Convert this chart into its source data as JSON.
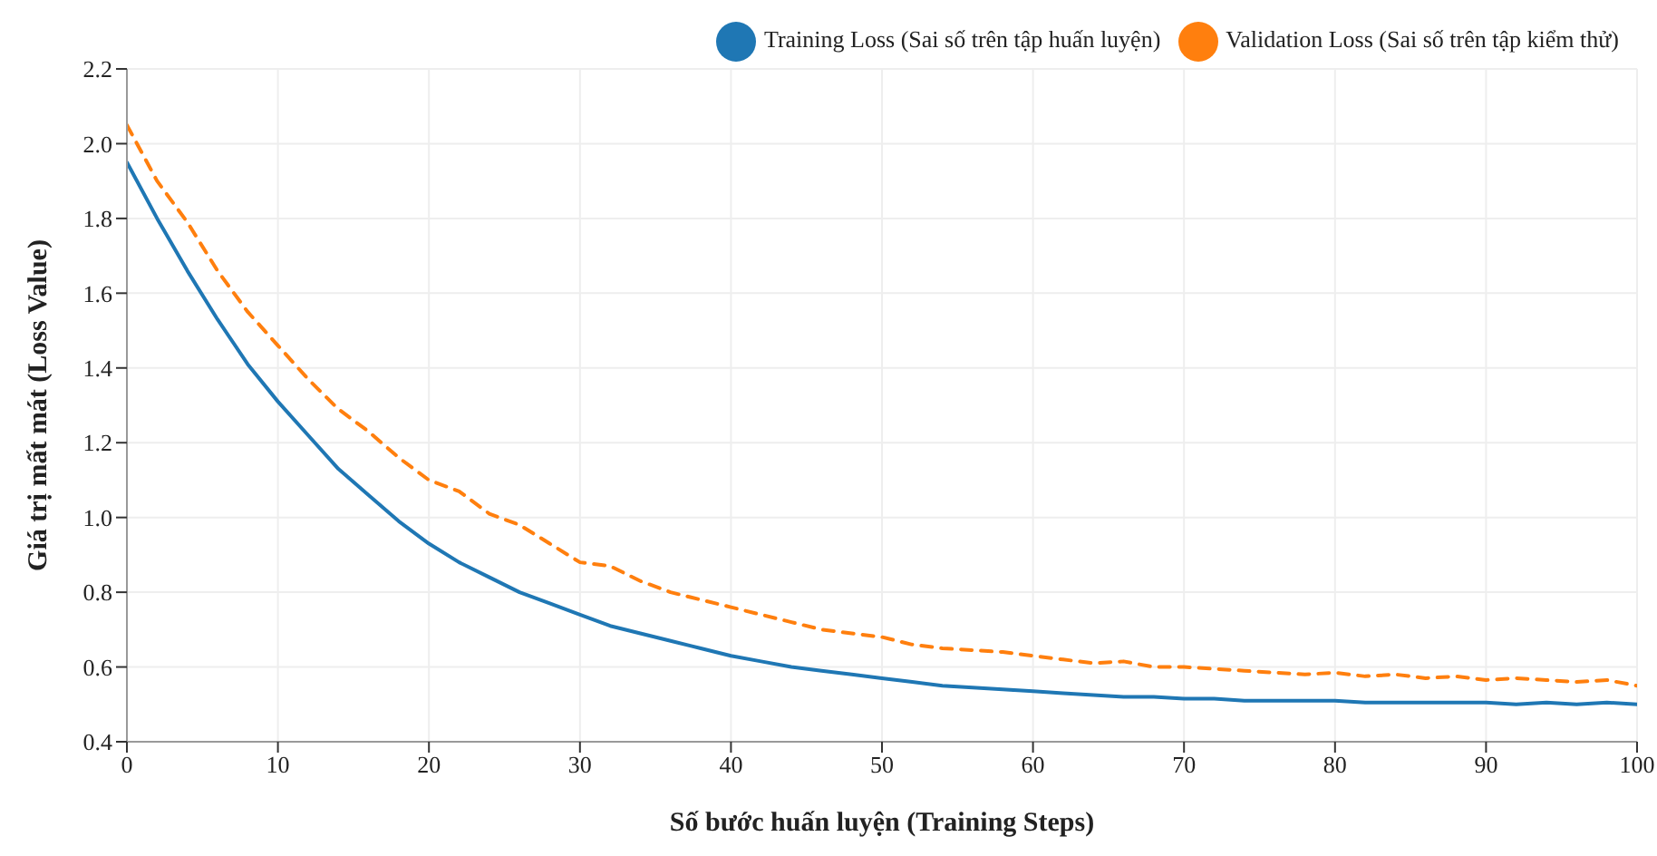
{
  "chart_data": {
    "type": "line",
    "xlabel": "Số bước huấn luyện (Training Steps)",
    "ylabel": "Giá trị mất mát (Loss Value)",
    "x": [
      0,
      2,
      4,
      6,
      8,
      10,
      12,
      14,
      16,
      18,
      20,
      22,
      24,
      26,
      28,
      30,
      32,
      34,
      36,
      38,
      40,
      42,
      44,
      46,
      48,
      50,
      52,
      54,
      56,
      58,
      60,
      62,
      64,
      66,
      68,
      70,
      72,
      74,
      76,
      78,
      80,
      82,
      84,
      86,
      88,
      90,
      92,
      94,
      96,
      98,
      100
    ],
    "series": [
      {
        "name": "Training Loss (Sai số trên tập huấn luyện)",
        "color": "#1f77b4",
        "line_style": "solid",
        "values": [
          1.95,
          1.8,
          1.66,
          1.53,
          1.41,
          1.31,
          1.22,
          1.13,
          1.06,
          0.99,
          0.93,
          0.88,
          0.84,
          0.8,
          0.77,
          0.74,
          0.71,
          0.69,
          0.67,
          0.65,
          0.63,
          0.615,
          0.6,
          0.59,
          0.58,
          0.57,
          0.56,
          0.55,
          0.545,
          0.54,
          0.535,
          0.53,
          0.525,
          0.52,
          0.52,
          0.515,
          0.515,
          0.51,
          0.51,
          0.51,
          0.51,
          0.505,
          0.505,
          0.505,
          0.505,
          0.505,
          0.5,
          0.505,
          0.5,
          0.505,
          0.5
        ]
      },
      {
        "name": "Validation Loss (Sai số trên tập kiểm thử)",
        "color": "#ff7f0e",
        "line_style": "dashed",
        "values": [
          2.05,
          1.9,
          1.79,
          1.66,
          1.55,
          1.46,
          1.37,
          1.29,
          1.23,
          1.16,
          1.1,
          1.07,
          1.01,
          0.98,
          0.93,
          0.88,
          0.87,
          0.83,
          0.8,
          0.78,
          0.76,
          0.74,
          0.72,
          0.7,
          0.69,
          0.68,
          0.66,
          0.65,
          0.645,
          0.64,
          0.63,
          0.62,
          0.61,
          0.615,
          0.6,
          0.6,
          0.595,
          0.59,
          0.585,
          0.58,
          0.585,
          0.575,
          0.58,
          0.57,
          0.575,
          0.565,
          0.57,
          0.565,
          0.56,
          0.565,
          0.55
        ]
      }
    ],
    "xlim": [
      0,
      100
    ],
    "xticks": [
      0,
      10,
      20,
      30,
      40,
      50,
      60,
      70,
      80,
      90,
      100
    ],
    "ylim": [
      0.4,
      2.2
    ],
    "yticks": [
      0.4,
      0.6,
      0.8,
      {
        "value": 1,
        "label": "1.0"
      },
      1.2,
      1.4,
      1.6,
      1.8,
      {
        "value": 2,
        "label": "2.0"
      },
      2.2
    ],
    "grid": true,
    "legend": "top right",
    "marker": "none"
  }
}
